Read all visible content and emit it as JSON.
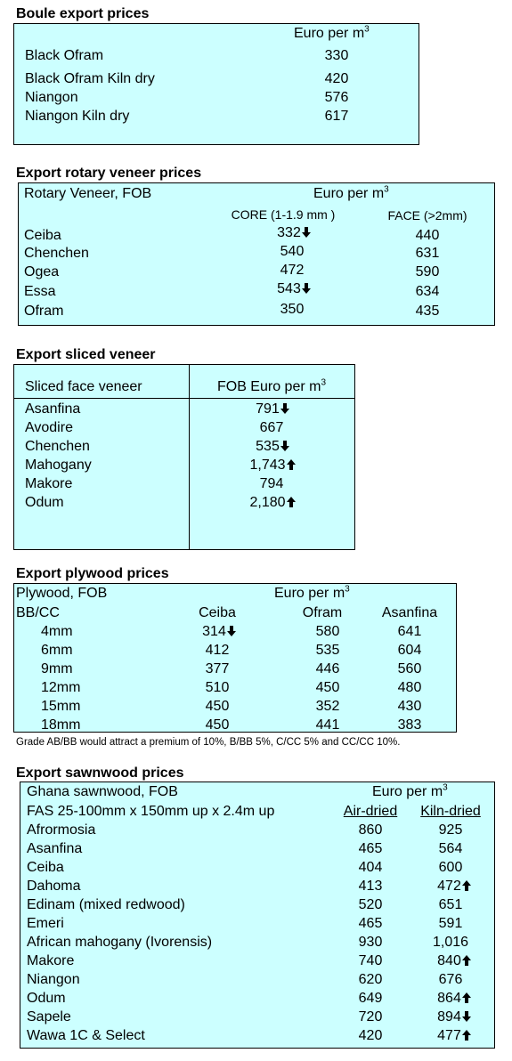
{
  "boule": {
    "title": "Boule export prices",
    "unit": {
      "text": "Euro per m",
      "sup": "3"
    },
    "rows": [
      [
        "Black Ofram",
        "330"
      ],
      [
        "Black Ofram  Kiln dry",
        "420"
      ],
      [
        "Niangon",
        "576"
      ],
      [
        "Niangon Kiln dry",
        "617"
      ]
    ]
  },
  "rotary": {
    "title": "Export rotary veneer prices",
    "label": "Rotary Veneer,  FOB",
    "unit": {
      "text": "Euro  per m",
      "sup": "3"
    },
    "columns": [
      "CORE (1-1.9 mm )",
      "FACE (>2mm)"
    ],
    "rows": [
      [
        "Ceiba",
        "332",
        "440"
      ],
      [
        "Chenchen",
        "540",
        "631"
      ],
      [
        "Ogea",
        "472",
        "590"
      ],
      [
        "Essa",
        "543",
        "634"
      ],
      [
        "Ofram",
        "350",
        "435"
      ]
    ]
  },
  "sliced": {
    "title": "Export sliced veneer",
    "label": "Sliced face veneer",
    "unit": {
      "text": "FOB Euro per m",
      "sup": "3"
    },
    "rows": [
      [
        "Asanfina",
        "791"
      ],
      [
        "Avodire",
        "667"
      ],
      [
        "Chenchen",
        "535"
      ],
      [
        "Mahogany",
        "1,743"
      ],
      [
        "Makore",
        "794"
      ],
      [
        "Odum",
        "2,180"
      ]
    ]
  },
  "plywood": {
    "title": "Export plywood prices",
    "label": "Plywood, FOB",
    "unit": {
      "text": "Euro per m",
      "sup": "3"
    },
    "sublabel": "BB/CC",
    "columns": [
      "Ceiba",
      "Ofram",
      "Asanfina"
    ],
    "rows": [
      [
        "4mm",
        "314",
        "580",
        "641"
      ],
      [
        "6mm",
        "412",
        "535",
        "604"
      ],
      [
        "9mm",
        "377",
        "446",
        "560"
      ],
      [
        "12mm",
        "510",
        "450",
        "480"
      ],
      [
        "15mm",
        "450",
        "352",
        "430"
      ],
      [
        "18mm",
        "450",
        "441",
        "383"
      ]
    ],
    "note": "Grade AB/BB would attract a premium of 10%, B/BB 5%, C/CC 5% and CC/CC 10%."
  },
  "sawnwood": {
    "title": "Export sawnwood prices",
    "label": "Ghana sawnwood, FOB",
    "unit": {
      "text": "Euro per m",
      "sup": "3"
    },
    "sublabel": "FAS 25-100mm x 150mm up x 2.4m up",
    "columns": [
      "Air-dried",
      "Kiln-dried"
    ],
    "rows": [
      [
        "Afrormosia",
        "860",
        "925"
      ],
      [
        "Asanfina",
        "465",
        "564"
      ],
      [
        "Ceiba",
        "404",
        "600"
      ],
      [
        "Dahoma",
        "413",
        "472"
      ],
      [
        "Edinam (mixed redwood)",
        "520",
        "651"
      ],
      [
        "Emeri",
        "465",
        "591"
      ],
      [
        "African mahogany (Ivorensis)",
        "930",
        "1,016"
      ],
      [
        "Makore",
        "740",
        "840"
      ],
      [
        "Niangon",
        "620",
        "676"
      ],
      [
        "Odum",
        "649",
        "864"
      ],
      [
        "Sapele",
        "720",
        "894"
      ],
      [
        "Wawa 1C & Select",
        "420",
        "477"
      ]
    ]
  }
}
